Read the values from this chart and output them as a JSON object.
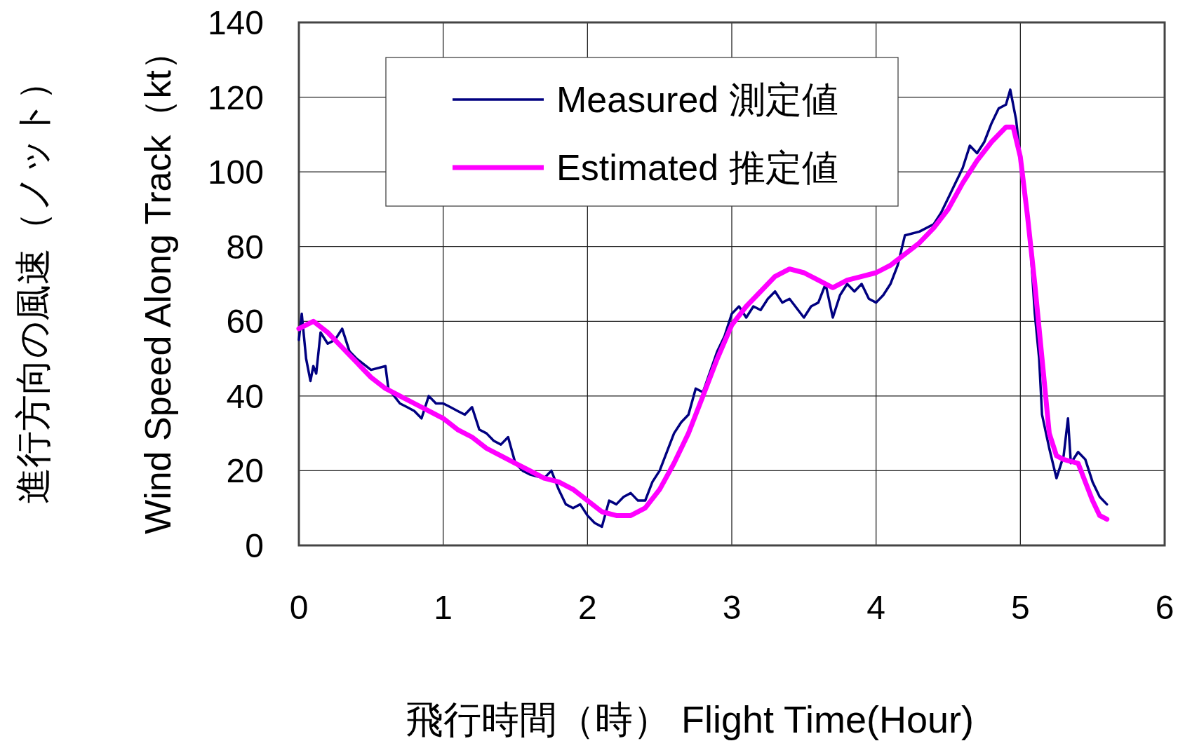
{
  "chart_data": {
    "type": "line",
    "xlabel": "飛行時間（時） Flight Time(Hour)",
    "ylabel": "進行方向の風速（ノット）",
    "y2label": "Wind Speed Along Track（kt）",
    "xlim": [
      0,
      6
    ],
    "ylim": [
      0,
      140
    ],
    "xticks": [
      0,
      1,
      2,
      3,
      4,
      5,
      6
    ],
    "yticks": [
      0,
      20,
      40,
      60,
      80,
      100,
      120,
      140
    ],
    "grid": true,
    "legend": "top left",
    "series": [
      {
        "name": "Measured 測定値",
        "color": "#000080",
        "x": [
          0,
          0.02,
          0.05,
          0.08,
          0.1,
          0.12,
          0.15,
          0.2,
          0.25,
          0.3,
          0.35,
          0.4,
          0.5,
          0.6,
          0.62,
          0.7,
          0.75,
          0.8,
          0.85,
          0.9,
          0.95,
          1.0,
          1.05,
          1.1,
          1.15,
          1.2,
          1.25,
          1.3,
          1.35,
          1.4,
          1.45,
          1.5,
          1.55,
          1.6,
          1.7,
          1.75,
          1.8,
          1.85,
          1.9,
          1.95,
          2.0,
          2.05,
          2.1,
          2.15,
          2.2,
          2.25,
          2.3,
          2.35,
          2.4,
          2.45,
          2.5,
          2.55,
          2.6,
          2.65,
          2.7,
          2.75,
          2.8,
          2.9,
          2.95,
          3.0,
          3.05,
          3.1,
          3.15,
          3.2,
          3.25,
          3.3,
          3.35,
          3.4,
          3.5,
          3.55,
          3.6,
          3.65,
          3.7,
          3.75,
          3.8,
          3.85,
          3.9,
          3.95,
          4.0,
          4.05,
          4.1,
          4.15,
          4.2,
          4.3,
          4.4,
          4.45,
          4.5,
          4.55,
          4.6,
          4.65,
          4.7,
          4.75,
          4.8,
          4.85,
          4.9,
          4.93,
          4.97,
          5.07,
          5.1,
          5.13,
          5.15,
          5.2,
          5.25,
          5.3,
          5.33,
          5.35,
          5.4,
          5.45,
          5.5,
          5.55,
          5.6
        ],
        "values": [
          55,
          62,
          50,
          44,
          48,
          46,
          57,
          54,
          55,
          58,
          52,
          50,
          47,
          48,
          42,
          38,
          37,
          36,
          34,
          40,
          38,
          38,
          37,
          36,
          35,
          37,
          31,
          30,
          28,
          27,
          29,
          22,
          20,
          19,
          18,
          20,
          15,
          11,
          10,
          11,
          8,
          6,
          5,
          12,
          11,
          13,
          14,
          12,
          12,
          17,
          20,
          25,
          30,
          33,
          35,
          42,
          41,
          52,
          56,
          62,
          64,
          61,
          64,
          63,
          66,
          68,
          65,
          66,
          61,
          64,
          65,
          70,
          61,
          67,
          70,
          68,
          70,
          66,
          65,
          67,
          70,
          75,
          83,
          84,
          86,
          89,
          93,
          97,
          101,
          107,
          105,
          108,
          113,
          117,
          118,
          122,
          114,
          80,
          62,
          50,
          35,
          26,
          18,
          24,
          34,
          22,
          25,
          23,
          17,
          13,
          11
        ]
      },
      {
        "name": "Estimated 推定値",
        "color": "#ff00ff",
        "x": [
          0,
          0.1,
          0.2,
          0.3,
          0.4,
          0.5,
          0.6,
          0.7,
          0.8,
          0.9,
          1.0,
          1.1,
          1.2,
          1.3,
          1.4,
          1.5,
          1.6,
          1.7,
          1.8,
          1.9,
          2.0,
          2.1,
          2.2,
          2.3,
          2.4,
          2.5,
          2.6,
          2.7,
          2.8,
          2.9,
          3.0,
          3.1,
          3.2,
          3.3,
          3.4,
          3.5,
          3.6,
          3.7,
          3.8,
          3.9,
          4.0,
          4.1,
          4.2,
          4.3,
          4.4,
          4.5,
          4.6,
          4.7,
          4.8,
          4.9,
          4.95,
          5.0,
          5.05,
          5.1,
          5.15,
          5.2,
          5.25,
          5.3,
          5.4,
          5.45,
          5.5,
          5.55,
          5.6
        ],
        "values": [
          58,
          60,
          57,
          53,
          49,
          45,
          42,
          40,
          38,
          36,
          34,
          31,
          29,
          26,
          24,
          22,
          20,
          18,
          17,
          15,
          12,
          9,
          8,
          8,
          10,
          15,
          22,
          30,
          40,
          50,
          59,
          64,
          68,
          72,
          74,
          73,
          71,
          69,
          71,
          72,
          73,
          75,
          78,
          81,
          85,
          90,
          97,
          103,
          108,
          112,
          112,
          104,
          88,
          70,
          50,
          30,
          24,
          23,
          22,
          17,
          12,
          8,
          7
        ]
      }
    ]
  }
}
